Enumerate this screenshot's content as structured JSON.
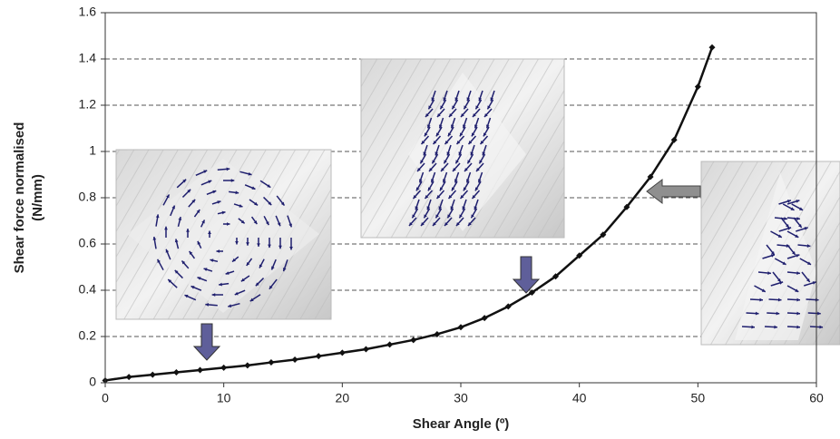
{
  "chart_data": {
    "type": "line",
    "x_label": "Shear Angle (º)",
    "y_label": [
      "Shear force normalised",
      "(N/mm)"
    ],
    "x": [
      0,
      2,
      4,
      6,
      8,
      10,
      12,
      14,
      16,
      18,
      20,
      22,
      24,
      26,
      28,
      30,
      32,
      34,
      36,
      38,
      40,
      42,
      44,
      46,
      48,
      50,
      51.2
    ],
    "series": [
      {
        "color": "#111111",
        "values": [
          0.01,
          0.025,
          0.035,
          0.045,
          0.055,
          0.065,
          0.075,
          0.088,
          0.1,
          0.115,
          0.13,
          0.145,
          0.165,
          0.185,
          0.21,
          0.24,
          0.28,
          0.33,
          0.39,
          0.46,
          0.55,
          0.64,
          0.76,
          0.89,
          1.05,
          1.28,
          1.45
        ]
      }
    ],
    "xlim": [
      0,
      60
    ],
    "xticks": [
      0,
      10,
      20,
      30,
      40,
      50,
      60
    ],
    "ylim": [
      0,
      1.6
    ],
    "yticks": [
      0,
      0.2,
      0.4,
      0.6,
      0.8,
      1,
      1.2,
      1.4,
      1.6
    ],
    "grid": true
  }
}
